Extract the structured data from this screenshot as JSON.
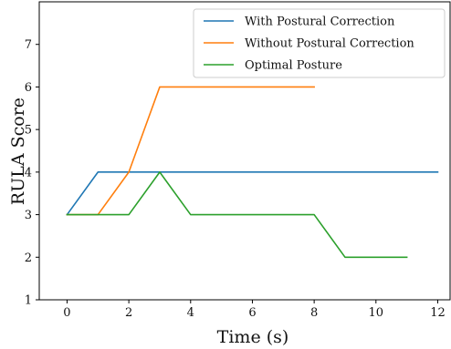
{
  "chart_data": {
    "type": "line",
    "title": "",
    "xlabel": "Time (s)",
    "ylabel": "RULA Score",
    "xlim": [
      -0.9,
      12.4
    ],
    "ylim": [
      1,
      8
    ],
    "xticks": [
      0,
      2,
      4,
      6,
      8,
      10,
      12
    ],
    "yticks": [
      1,
      2,
      3,
      4,
      5,
      6,
      7
    ],
    "grid": false,
    "legend_position": "top-right",
    "series": [
      {
        "name": "With Postural Correction",
        "color": "#1f77b4",
        "x": [
          0,
          1,
          2,
          3,
          4,
          5,
          6,
          7,
          8,
          9,
          10,
          11,
          12
        ],
        "y": [
          3,
          4,
          4,
          4,
          4,
          4,
          4,
          4,
          4,
          4,
          4,
          4,
          4
        ]
      },
      {
        "name": "Without Postural Correction",
        "color": "#ff7f0e",
        "x": [
          0,
          1,
          2,
          3,
          4,
          5,
          6,
          7,
          8
        ],
        "y": [
          3,
          3,
          4,
          6,
          6,
          6,
          6,
          6,
          6
        ]
      },
      {
        "name": "Optimal Posture",
        "color": "#2ca02c",
        "x": [
          0,
          1,
          2,
          3,
          4,
          5,
          6,
          7,
          8,
          9,
          10,
          11
        ],
        "y": [
          3,
          3,
          3,
          4,
          3,
          3,
          3,
          3,
          3,
          2,
          2,
          2
        ]
      }
    ]
  }
}
